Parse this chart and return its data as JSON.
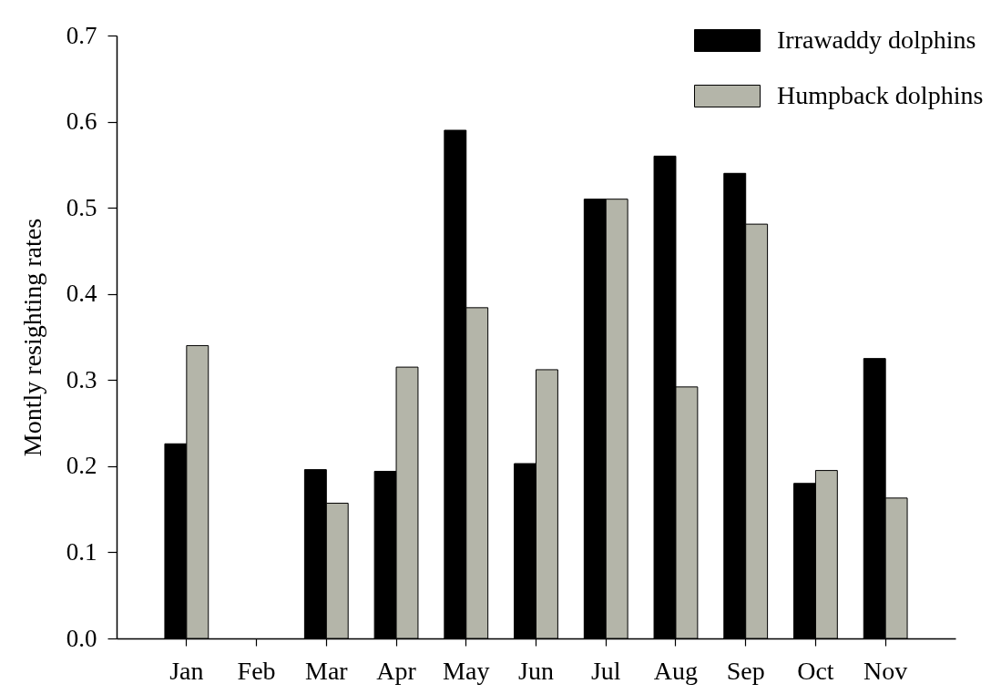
{
  "chart_data": {
    "type": "bar",
    "ylabel": "Montly resighting rates",
    "categories": [
      "Jan",
      "Feb",
      "Mar",
      "Apr",
      "May",
      "Jun",
      "Jul",
      "Aug",
      "Sep",
      "Oct",
      "Nov"
    ],
    "series": [
      {
        "name": "Irrawaddy dolphins",
        "color": "#000000",
        "values": [
          0.226,
          null,
          0.196,
          0.194,
          0.59,
          0.203,
          0.51,
          0.56,
          0.54,
          0.18,
          0.325
        ]
      },
      {
        "name": "Humpback dolphins",
        "color": "#b4b5a9",
        "values": [
          0.34,
          null,
          0.157,
          0.315,
          0.384,
          0.312,
          0.51,
          0.292,
          0.481,
          0.195,
          0.163
        ]
      }
    ],
    "ylim": [
      0,
      0.7
    ],
    "yticks": [
      {
        "value": 0,
        "label": "0.0"
      },
      0.1,
      0.2,
      0.3,
      0.4,
      0.5,
      0.6,
      0.7
    ],
    "grid": false,
    "legend": "top right"
  }
}
